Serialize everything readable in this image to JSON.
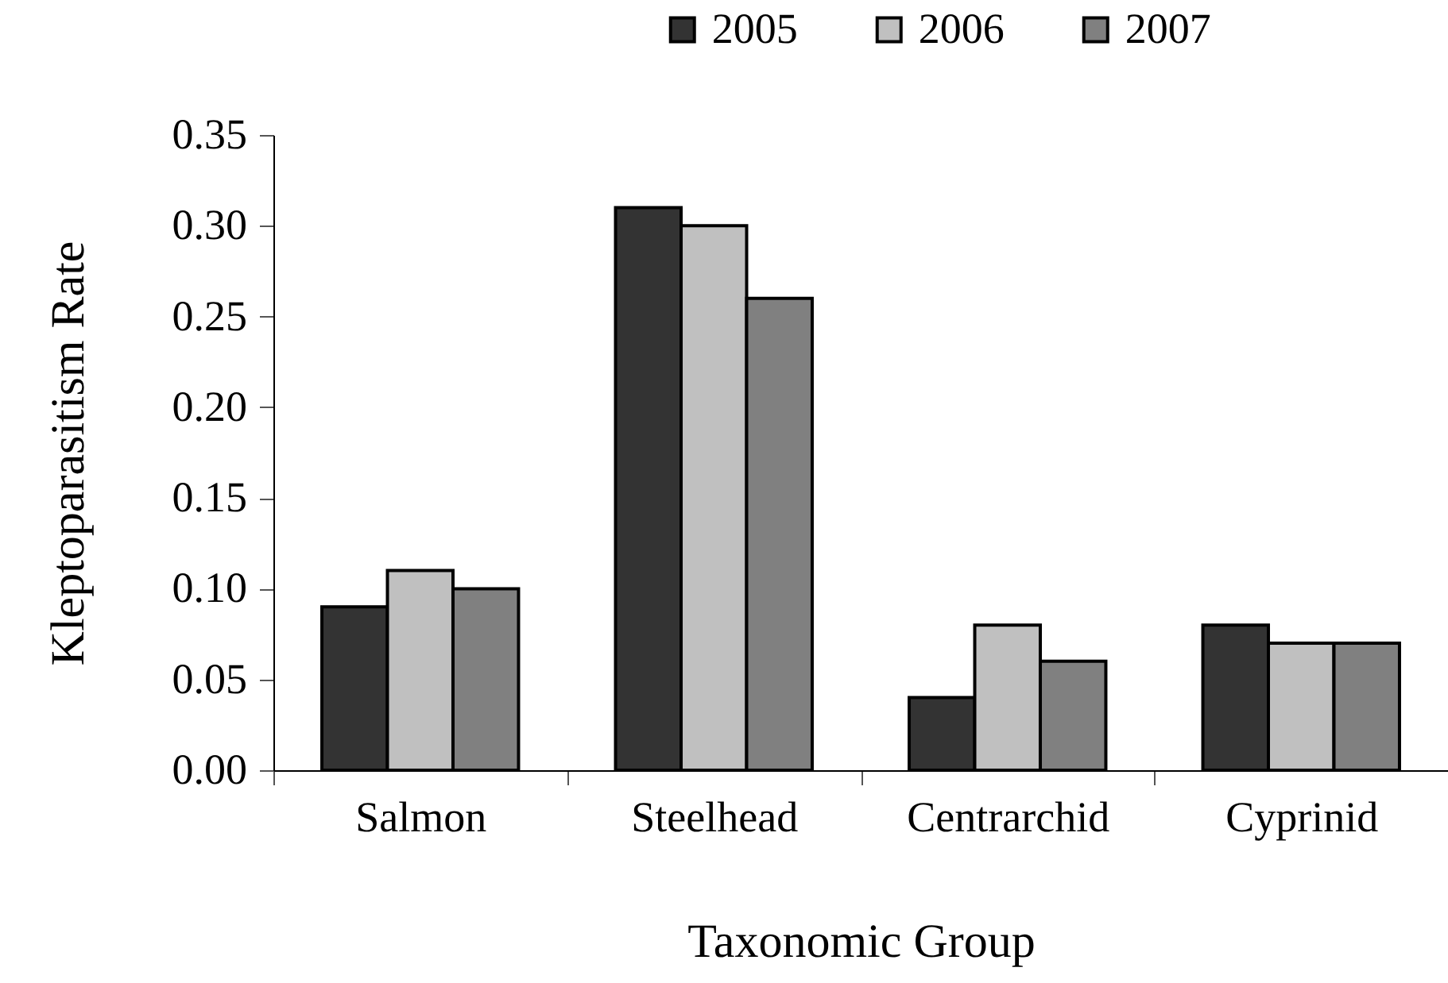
{
  "chart_data": {
    "type": "bar",
    "xlabel": "Taxonomic Group",
    "ylabel": "Kleptoparasitism Rate",
    "categories": [
      "Salmon",
      "Steelhead",
      "Centrarchid",
      "Cyprinid"
    ],
    "series": [
      {
        "name": "2005",
        "color": "#333333",
        "values": [
          0.09,
          0.31,
          0.04,
          0.08
        ]
      },
      {
        "name": "2006",
        "color": "#c0c0c0",
        "values": [
          0.11,
          0.3,
          0.08,
          0.07
        ]
      },
      {
        "name": "2007",
        "color": "#808080",
        "values": [
          0.1,
          0.26,
          0.06,
          0.07
        ]
      }
    ],
    "ylim": [
      0,
      0.35
    ],
    "yticks": [
      {
        "value": 0,
        "label": "0.00"
      },
      0.05,
      {
        "value": 0.1,
        "label": "0.10"
      },
      0.15,
      {
        "value": 0.2,
        "label": "0.20"
      },
      0.25,
      {
        "value": 0.3,
        "label": "0.30"
      },
      0.35
    ],
    "legend": "top",
    "grid": false
  }
}
